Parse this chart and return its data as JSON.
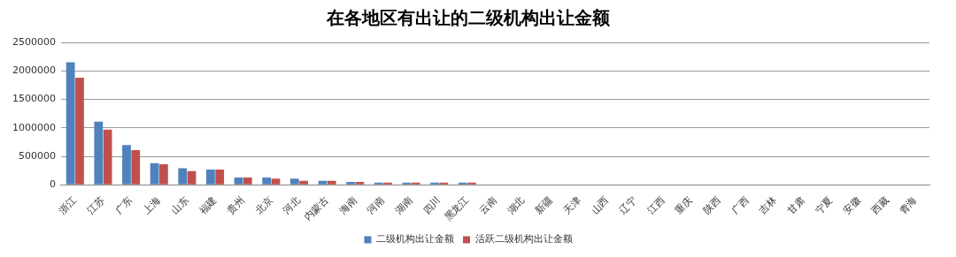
{
  "chart_data": {
    "type": "bar",
    "title": "在各地区有出让的二级机构出让金额",
    "categories": [
      "浙江",
      "江苏",
      "广东",
      "上海",
      "山东",
      "福建",
      "贵州",
      "北京",
      "河北",
      "内蒙古",
      "海南",
      "河南",
      "湖南",
      "四川",
      "黑龙江",
      "云南",
      "湖北",
      "新疆",
      "天津",
      "山西",
      "辽宁",
      "江西",
      "重庆",
      "陕西",
      "广西",
      "吉林",
      "甘肃",
      "宁夏",
      "安徽",
      "西藏",
      "青海"
    ],
    "series": [
      {
        "name": "二级机构出让金额",
        "color": "#4f81bd",
        "values": [
          2150000,
          1110000,
          700000,
          380000,
          290000,
          270000,
          130000,
          130000,
          110000,
          70000,
          50000,
          40000,
          40000,
          40000,
          40000,
          10000,
          10000,
          10000,
          10000,
          10000,
          10000,
          10000,
          10000,
          10000,
          10000,
          10000,
          10000,
          10000,
          10000,
          0,
          0
        ]
      },
      {
        "name": "活跃二级机构出让金额",
        "color": "#c0504d",
        "values": [
          1880000,
          970000,
          610000,
          360000,
          240000,
          270000,
          130000,
          110000,
          70000,
          70000,
          50000,
          40000,
          40000,
          40000,
          40000,
          10000,
          10000,
          10000,
          10000,
          10000,
          10000,
          10000,
          10000,
          10000,
          10000,
          10000,
          0,
          0,
          0,
          0,
          0
        ]
      }
    ],
    "ylim": [
      0,
      2500000
    ],
    "yticks": [
      0,
      500000,
      1000000,
      1500000,
      2000000,
      2500000
    ],
    "grid": "y",
    "legend": "bottom"
  }
}
